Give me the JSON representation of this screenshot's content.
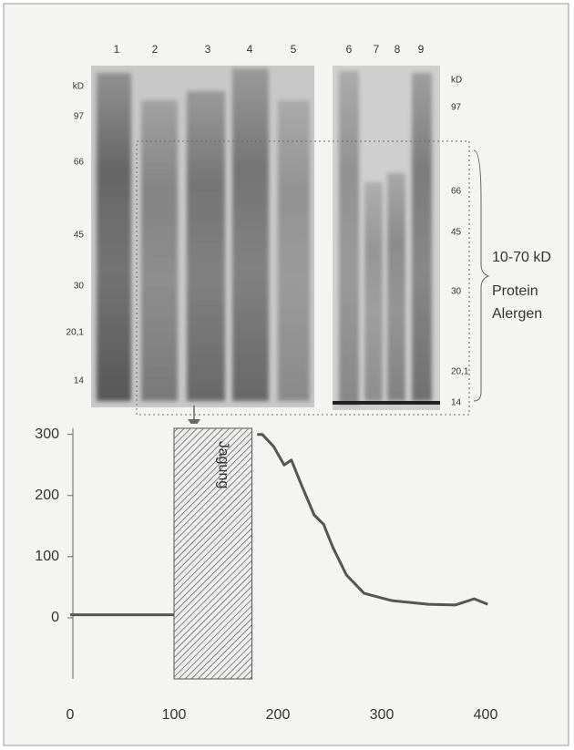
{
  "gel": {
    "lanes": [
      "1",
      "2",
      "3",
      "4",
      "5",
      "6",
      "7",
      "8",
      "9"
    ],
    "left_markers": [
      "kD",
      "97",
      "66",
      "45",
      "30",
      "20,1",
      "14"
    ],
    "right_markers": [
      "kD",
      "97",
      "66",
      "45",
      "30",
      "20,1",
      "14"
    ],
    "annotation": [
      "10-70 kD",
      "Protein",
      "Alergen"
    ]
  },
  "chart_data": {
    "type": "line",
    "x": [
      0,
      50,
      100,
      140,
      180,
      185,
      196,
      206,
      213,
      222,
      235,
      244,
      253,
      266,
      283,
      310,
      345,
      371,
      389,
      402
    ],
    "values": [
      5,
      5,
      5,
      null,
      300,
      300,
      280,
      250,
      258,
      220,
      168,
      153,
      115,
      70,
      40,
      28,
      22,
      21,
      31,
      22
    ],
    "color": "#555555",
    "shaded_region": [
      100,
      175
    ],
    "shaded_label": "Jagung",
    "xlim": [
      0,
      400
    ],
    "ylim": [
      -100,
      310
    ],
    "xticks": [
      0,
      100,
      200,
      300,
      400
    ],
    "yticks": [
      0,
      100,
      200,
      300
    ]
  }
}
